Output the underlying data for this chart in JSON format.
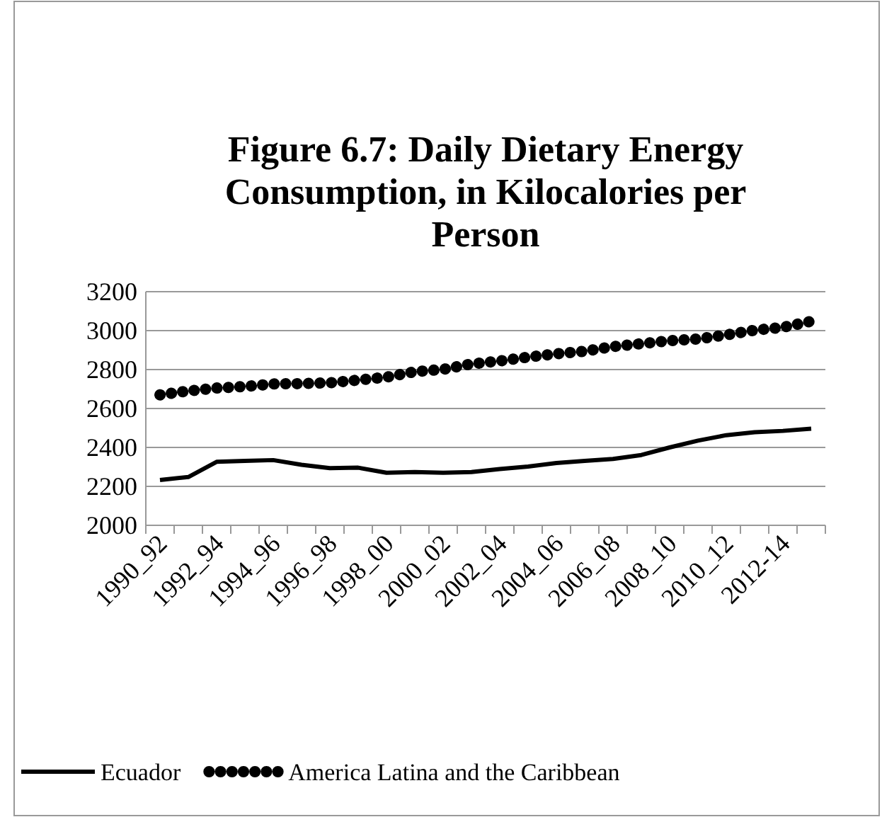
{
  "chart_data": {
    "type": "line",
    "title": "Figure 6.7: Daily Dietary Energy Consumption, in Kilocalories per Person",
    "categories": [
      "1990_92",
      null,
      "1992_94",
      null,
      "1994_96",
      null,
      "1996_98",
      null,
      "1998_00",
      null,
      "2000_02",
      null,
      "2002_04",
      null,
      "2004_06",
      null,
      "2006_08",
      null,
      "2008_10",
      null,
      "2010_12",
      null,
      "2012-14",
      null
    ],
    "series": [
      {
        "name": "Ecuador",
        "color": "#000000",
        "line_style": "solid",
        "marker": "none",
        "values": [
          2233,
          2248,
          2326,
          2331,
          2335,
          2311,
          2294,
          2296,
          2270,
          2274,
          2270,
          2274,
          2289,
          2302,
          2320,
          2331,
          2341,
          2361,
          2400,
          2435,
          2463,
          2478,
          2485,
          2496
        ]
      },
      {
        "name": "America Latina and the Caribbean",
        "color": "#000000",
        "line_style": "dotted",
        "marker": "none",
        "values": [
          2670,
          2690,
          2705,
          2713,
          2726,
          2728,
          2732,
          2746,
          2761,
          2789,
          2801,
          2829,
          2844,
          2864,
          2881,
          2894,
          2918,
          2933,
          2948,
          2957,
          2978,
          3002,
          3017,
          3048
        ]
      }
    ],
    "ylim": [
      2000,
      3200
    ],
    "yticks": [
      2000,
      2200,
      2400,
      2600,
      2800,
      3000,
      3200
    ],
    "grid": "y",
    "legend": "bottom"
  }
}
